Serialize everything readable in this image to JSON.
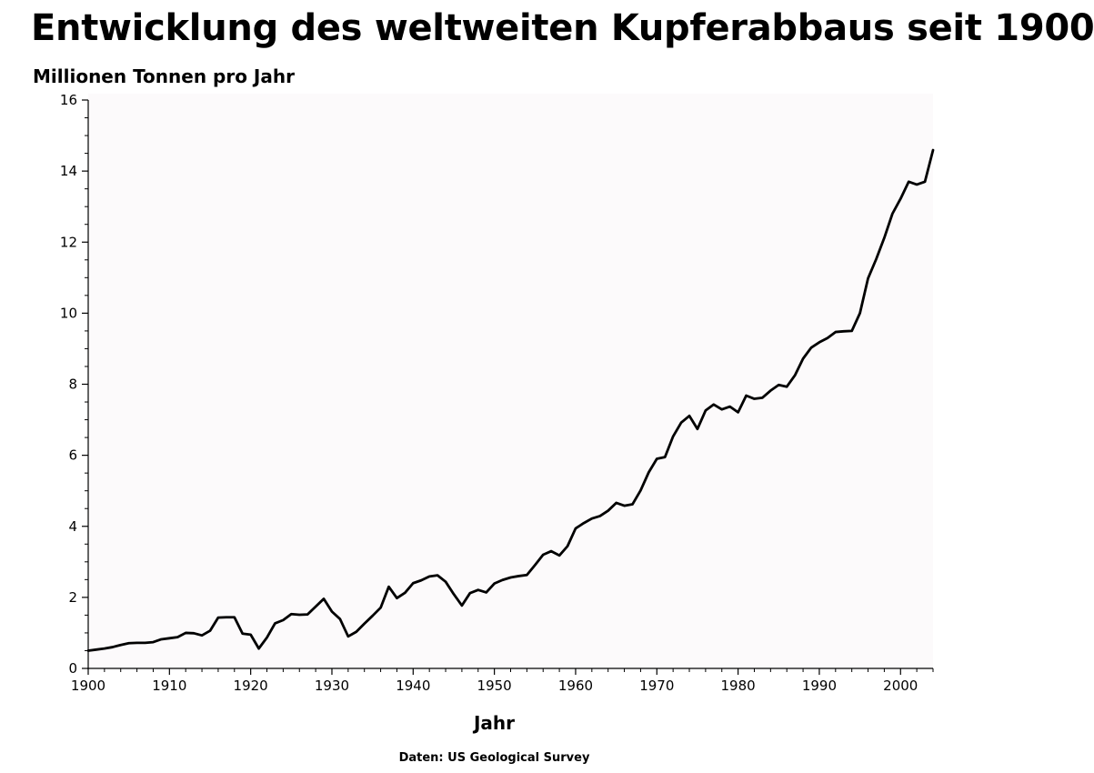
{
  "chart_data": {
    "type": "line",
    "title": "Entwicklung des weltweiten Kupferabbaus seit 1900",
    "ylabel": "Millionen Tonnen pro Jahr",
    "xlabel": "Jahr",
    "source": "Daten: US Geological Survey",
    "xlim": [
      1900,
      2004
    ],
    "ylim": [
      0,
      16
    ],
    "x_ticks": [
      1900,
      1910,
      1920,
      1930,
      1940,
      1950,
      1960,
      1970,
      1980,
      1990,
      2000
    ],
    "y_ticks": [
      0,
      2,
      4,
      6,
      8,
      10,
      12,
      14,
      16
    ],
    "grid": false,
    "plot_background": "#fcfafb",
    "line_color": "#000000",
    "series": [
      {
        "x": [
          1900,
          1901,
          1902,
          1903,
          1904,
          1905,
          1906,
          1907,
          1908,
          1909,
          1910,
          1911,
          1912,
          1913,
          1914,
          1915,
          1916,
          1917,
          1918,
          1919,
          1920,
          1921,
          1922,
          1923,
          1924,
          1925,
          1926,
          1927,
          1928,
          1929,
          1930,
          1931,
          1932,
          1933,
          1934,
          1935,
          1936,
          1937,
          1938,
          1939,
          1940,
          1941,
          1942,
          1943,
          1944,
          1945,
          1946,
          1947,
          1948,
          1949,
          1950,
          1951,
          1952,
          1953,
          1954,
          1955,
          1956,
          1957,
          1958,
          1959,
          1960,
          1961,
          1962,
          1963,
          1964,
          1965,
          1966,
          1967,
          1968,
          1969,
          1970,
          1971,
          1972,
          1973,
          1974,
          1975,
          1976,
          1977,
          1978,
          1979,
          1980,
          1981,
          1982,
          1983,
          1984,
          1985,
          1986,
          1987,
          1988,
          1989,
          1990,
          1991,
          1992,
          1993,
          1994,
          1995,
          1996,
          1997,
          1998,
          1999,
          2000,
          2001,
          2002,
          2003,
          2004
        ],
        "values": [
          0.5,
          0.53,
          0.56,
          0.6,
          0.66,
          0.71,
          0.72,
          0.72,
          0.74,
          0.82,
          0.85,
          0.88,
          1.0,
          0.99,
          0.93,
          1.06,
          1.43,
          1.44,
          1.44,
          0.98,
          0.95,
          0.56,
          0.87,
          1.27,
          1.36,
          1.53,
          1.51,
          1.52,
          1.74,
          1.96,
          1.6,
          1.39,
          0.9,
          1.03,
          1.26,
          1.48,
          1.71,
          2.3,
          1.98,
          2.13,
          2.4,
          2.48,
          2.59,
          2.62,
          2.44,
          2.09,
          1.77,
          2.12,
          2.21,
          2.14,
          2.39,
          2.49,
          2.56,
          2.6,
          2.63,
          2.91,
          3.2,
          3.3,
          3.18,
          3.44,
          3.94,
          4.09,
          4.22,
          4.29,
          4.44,
          4.66,
          4.58,
          4.62,
          5.01,
          5.52,
          5.9,
          5.95,
          6.53,
          6.92,
          7.11,
          6.74,
          7.26,
          7.43,
          7.29,
          7.37,
          7.21,
          7.68,
          7.59,
          7.62,
          7.82,
          7.98,
          7.93,
          8.25,
          8.72,
          9.03,
          9.18,
          9.3,
          9.47,
          9.49,
          9.5,
          10.0,
          10.98,
          11.52,
          12.12,
          12.8,
          13.22,
          13.7,
          13.62,
          13.7,
          14.59
        ]
      }
    ]
  }
}
